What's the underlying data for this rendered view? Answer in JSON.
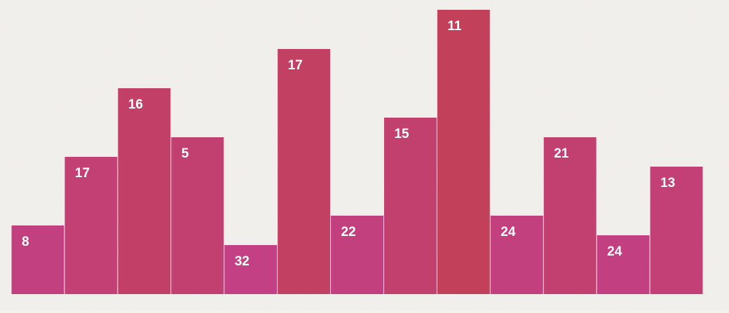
{
  "chart_data": {
    "type": "bar",
    "values": [
      70,
      140,
      210,
      160,
      50,
      250,
      80,
      180,
      290,
      80,
      160,
      60,
      130
    ],
    "data_labels": [
      "8",
      "17",
      "16",
      "5",
      "32",
      "17",
      "22",
      "15",
      "11",
      "24",
      "21",
      "24",
      "13"
    ],
    "ylim": [
      0,
      300
    ],
    "grid": false,
    "legend": "none",
    "colors": {
      "low": "#c2408c",
      "high": "#c24058",
      "label": "#ffffff",
      "separator": "#f3f1ed",
      "background": "#f3f1ed"
    }
  }
}
